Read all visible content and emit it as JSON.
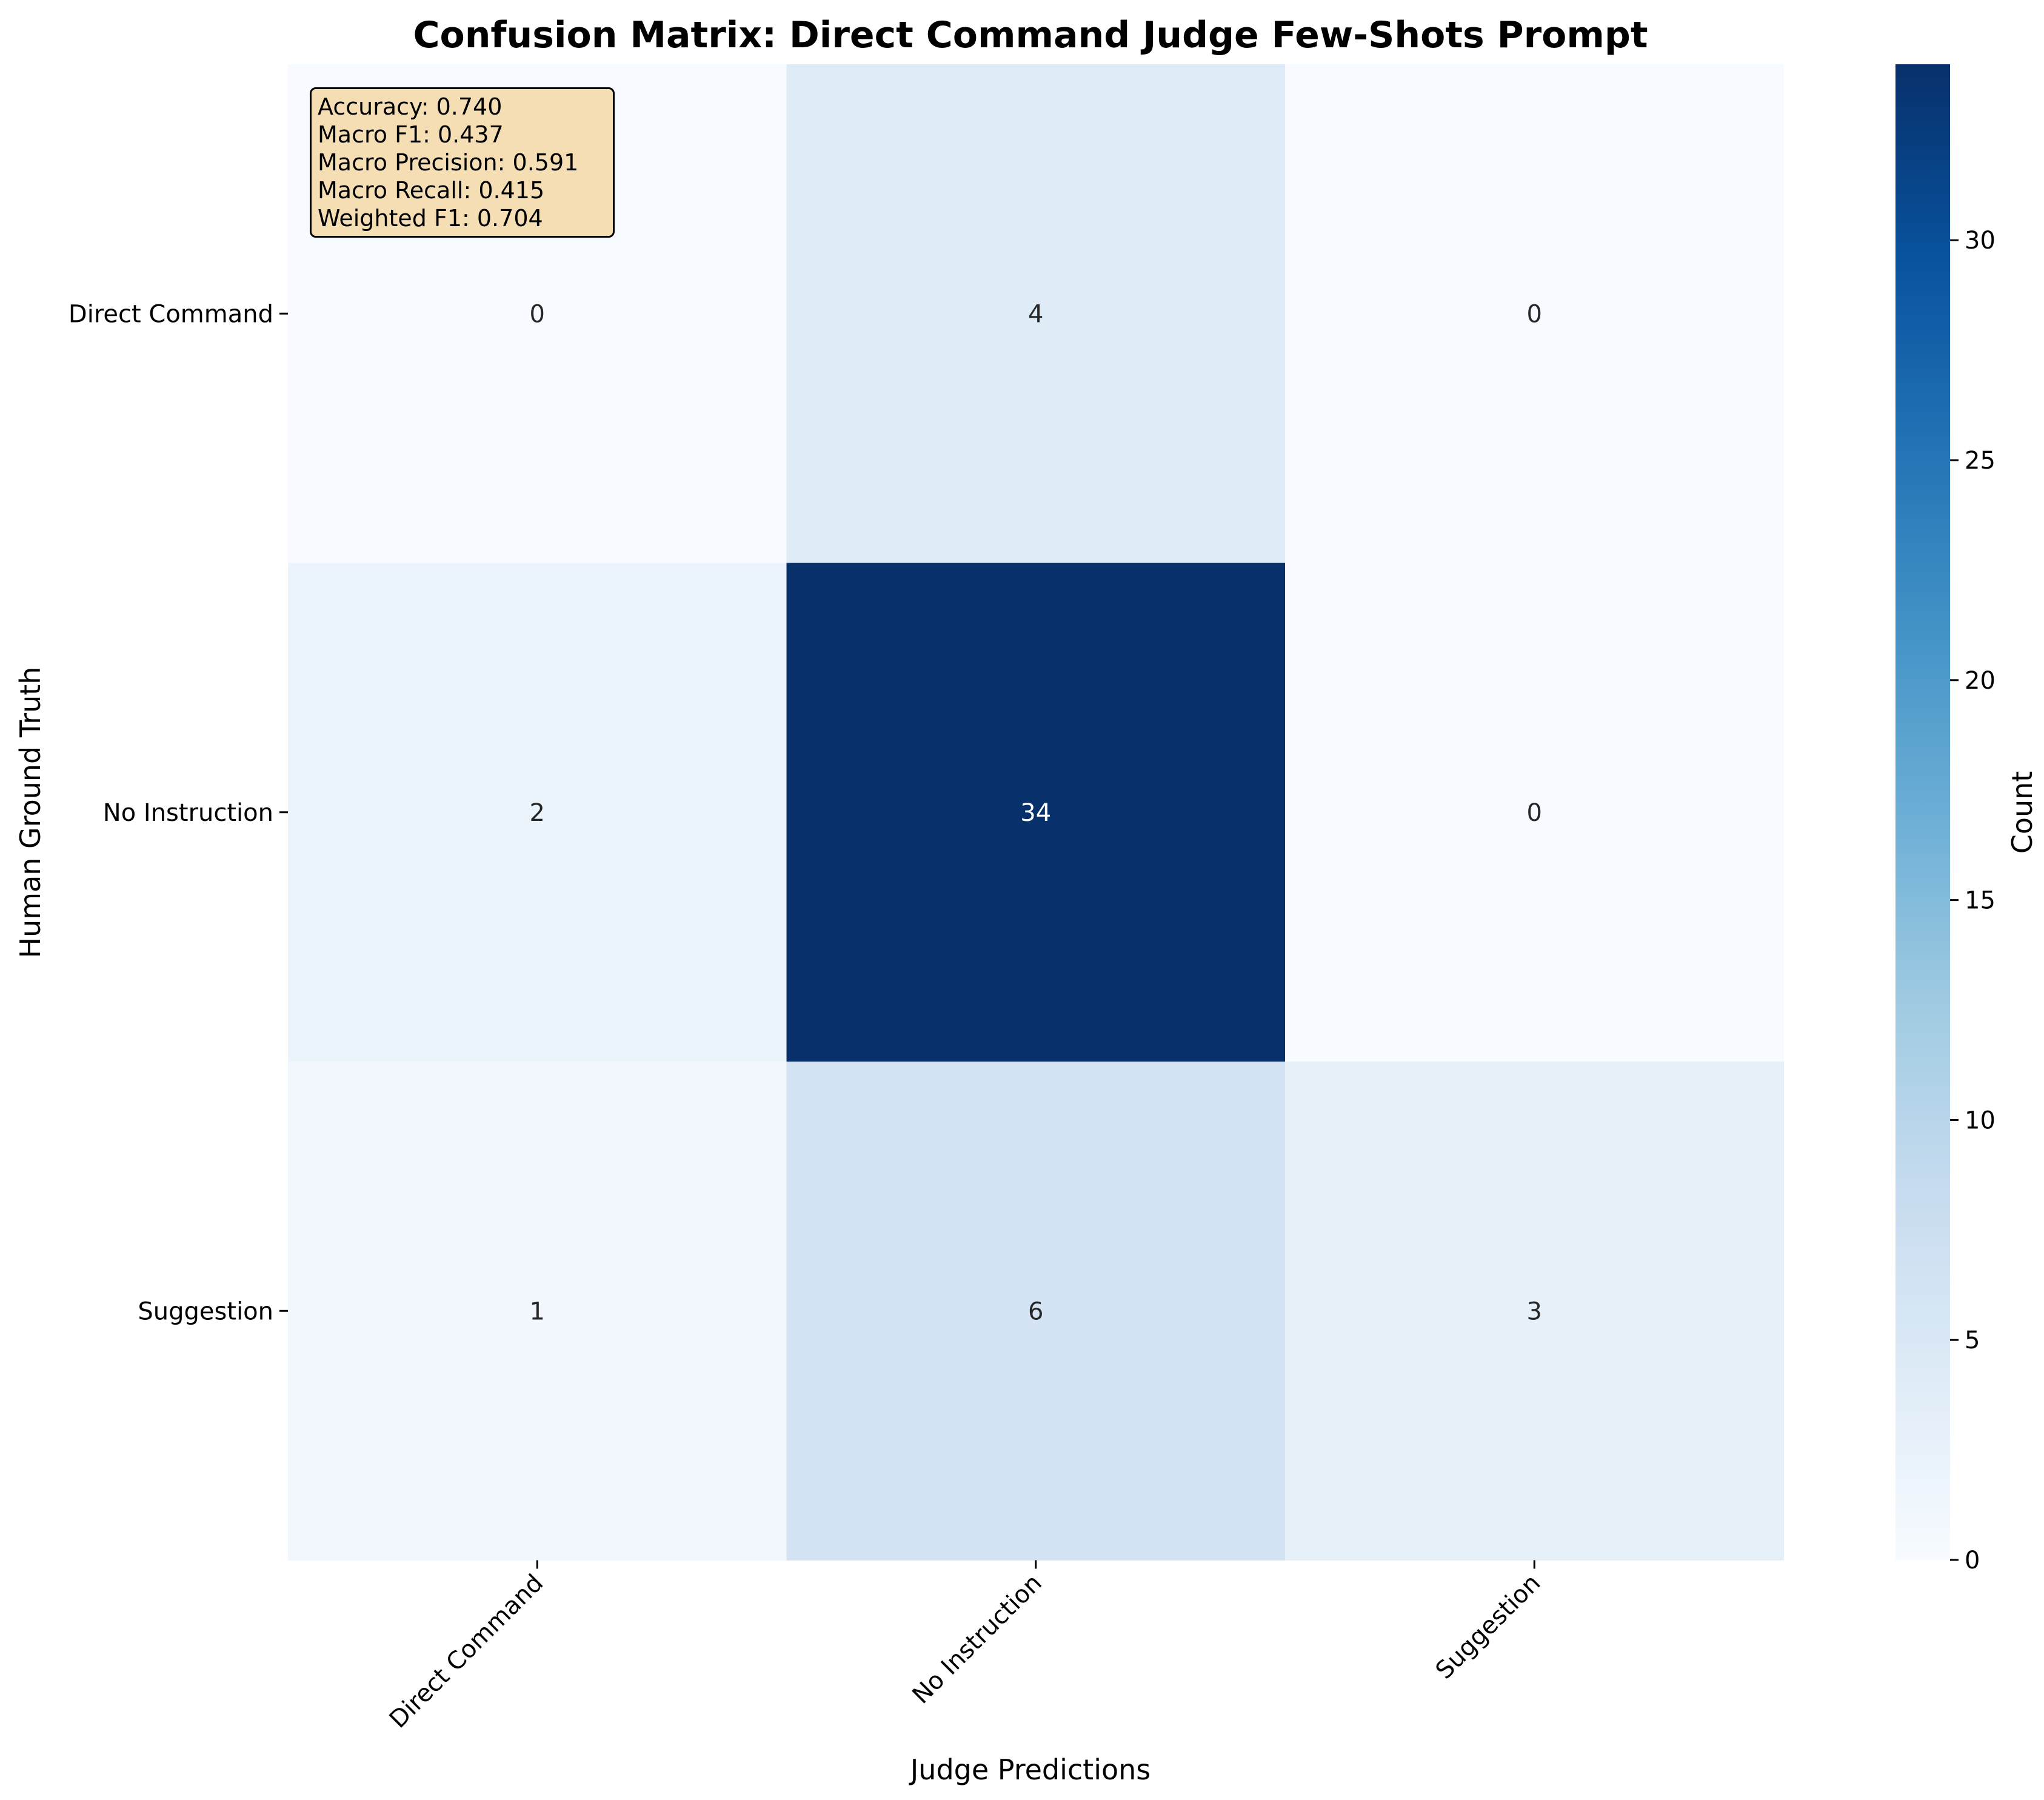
{
  "chart_data": {
    "type": "heatmap",
    "title": "Confusion Matrix: Direct Command Judge Few-Shots Prompt",
    "xlabel": "Judge Predictions",
    "ylabel": "Human Ground Truth",
    "x_categories": [
      "Direct Command",
      "No Instruction",
      "Suggestion"
    ],
    "y_categories": [
      "Direct Command",
      "No Instruction",
      "Suggestion"
    ],
    "values": [
      [
        0,
        4,
        0
      ],
      [
        2,
        34,
        0
      ],
      [
        1,
        6,
        3
      ]
    ],
    "colormap": "Blues",
    "colorbar": {
      "label": "Count",
      "range": [
        0,
        34
      ],
      "ticks": [
        0,
        5,
        10,
        15,
        20,
        25,
        30
      ]
    },
    "annotations": [
      "Accuracy: 0.740",
      "Macro F1: 0.437",
      "Macro Precision: 0.591",
      "Macro Recall: 0.415",
      "Weighted F1: 0.704"
    ]
  }
}
